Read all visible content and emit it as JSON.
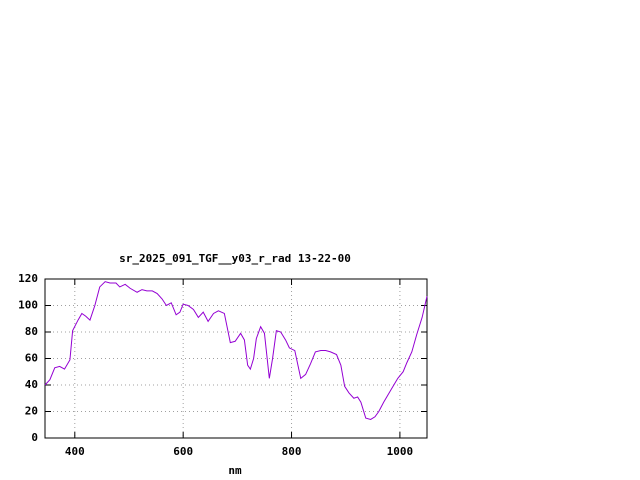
{
  "chart_data": {
    "type": "line",
    "title": "sr_2025_091_TGF__y03_r_rad 13-22-00",
    "x_label": "nm",
    "x": [
      345,
      354,
      363,
      372,
      381,
      391,
      396,
      406,
      413,
      420,
      428,
      437,
      446,
      456,
      465,
      476,
      483,
      493,
      502,
      515,
      524,
      533,
      543,
      552,
      561,
      569,
      578,
      587,
      594,
      600,
      609,
      619,
      628,
      637,
      646,
      656,
      665,
      676,
      687,
      696,
      706,
      713,
      719,
      724,
      730,
      735,
      743,
      750,
      759,
      765,
      772,
      780,
      789,
      796,
      806,
      817,
      826,
      835,
      844,
      854,
      863,
      872,
      883,
      891,
      898,
      906,
      915,
      922,
      928,
      937,
      946,
      954,
      961,
      970,
      983,
      996,
      1006,
      1013,
      1022,
      1031,
      1041,
      1050
    ],
    "values": [
      40,
      44,
      53,
      54,
      52,
      59,
      81,
      89,
      94,
      92,
      89,
      100,
      114,
      118,
      117,
      117,
      114,
      116,
      113,
      110,
      112,
      111,
      111,
      109,
      105,
      100,
      102,
      93,
      95,
      101,
      100,
      97,
      91,
      95,
      88,
      94,
      96,
      94,
      72,
      73,
      79,
      74,
      55,
      52,
      60,
      75,
      84,
      79,
      45,
      60,
      81,
      80,
      74,
      68,
      66,
      45,
      48,
      56,
      65,
      66,
      66,
      65,
      63,
      55,
      39,
      34,
      30,
      31,
      27,
      15,
      14,
      16,
      20,
      27,
      36,
      45,
      50,
      57,
      65,
      78,
      91,
      107
    ],
    "color": "#9400d3",
    "xlim": [
      345,
      1050
    ],
    "xticks": [
      400,
      600,
      800,
      1000
    ],
    "ylim": [
      0,
      120
    ],
    "yticks": [
      0,
      20,
      40,
      60,
      80,
      100,
      120
    ],
    "grid": true
  }
}
